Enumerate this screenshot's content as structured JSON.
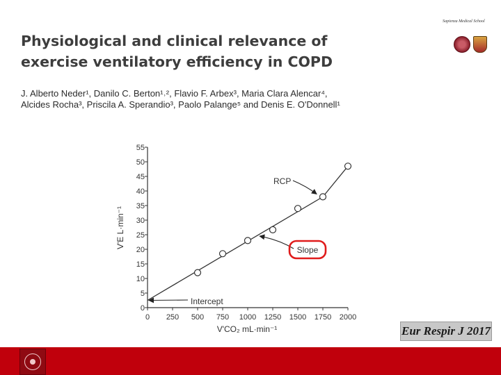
{
  "slide": {
    "title_line1": "Physiological and clinical relevance of",
    "title_line2": "exercise ventilatory efficiency in COPD",
    "authors_line1": "J. Alberto Neder¹, Danilo C. Berton¹˒², Flavio F. Arbex³, Maria Clara Alencar⁴,",
    "authors_line2": "Alcides Rocha³, Priscila A. Sperandio³, Paolo Palange⁵ and Denis E. O'Donnell¹",
    "school_label": "Sapienza Medical School",
    "journal_citation": "Eur Respir J 2017"
  },
  "chart_data": {
    "type": "scatter",
    "xlabel": "V'CO₂ mL·min⁻¹",
    "ylabel": "V'E L·min⁻¹",
    "xlim": [
      0,
      2000
    ],
    "ylim": [
      0,
      55
    ],
    "x_ticks": [
      "0",
      "250",
      "500",
      "750",
      "1000",
      "1250",
      "1500",
      "1750",
      "2000"
    ],
    "y_ticks": [
      "0",
      "5",
      "10",
      "15",
      "20",
      "25",
      "30",
      "35",
      "40",
      "45",
      "50",
      "55"
    ],
    "points": [
      {
        "x": 500,
        "y": 12
      },
      {
        "x": 750,
        "y": 18.5
      },
      {
        "x": 1000,
        "y": 23
      },
      {
        "x": 1250,
        "y": 26.7
      },
      {
        "x": 1500,
        "y": 34
      },
      {
        "x": 1750,
        "y": 38
      },
      {
        "x": 2000,
        "y": 48.5
      }
    ],
    "fit_line": [
      {
        "x": 0,
        "y": 2.5
      },
      {
        "x": 1750,
        "y": 38
      },
      {
        "x": 2000,
        "y": 48.5
      }
    ],
    "annotations": [
      {
        "label": "RCP",
        "target": {
          "x": 1750,
          "y": 38
        }
      },
      {
        "label": "Slope",
        "target": {
          "x": 1120,
          "y": 24.5
        },
        "highlight_color": "#e01b1b"
      },
      {
        "label": "Intercept",
        "target": {
          "x": 0,
          "y": 2.5
        }
      }
    ]
  },
  "colors": {
    "footer": "#c0000c",
    "highlight": "#e01b1b",
    "ink": "#333333"
  }
}
